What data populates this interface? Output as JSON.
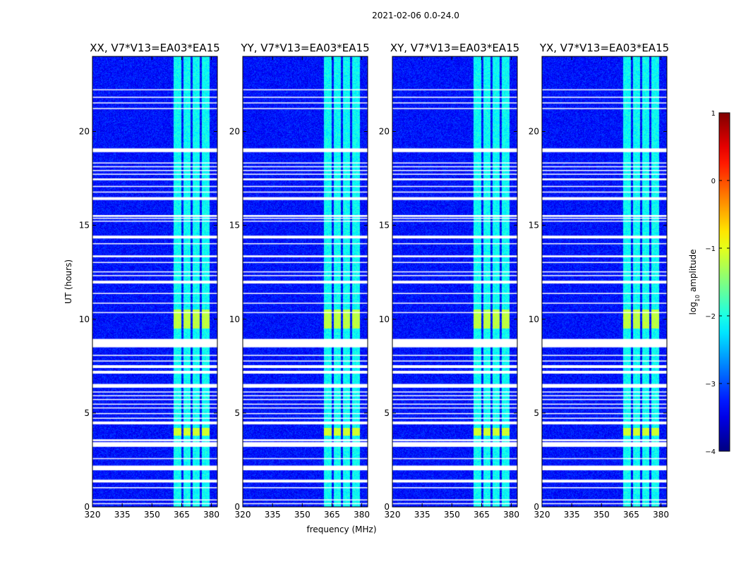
{
  "chart_data": {
    "type": "heatmap",
    "suptitle": "2021-02-06 0.0-24.0",
    "xlabel": "frequency (MHz)",
    "ylabel": "UT (hours)",
    "xlim": [
      320,
      383
    ],
    "ylim": [
      0,
      24
    ],
    "xticks": [
      320,
      335,
      350,
      365,
      380
    ],
    "yticks": [
      0,
      5,
      10,
      15,
      20
    ],
    "colorscale": "jet",
    "colorbar": {
      "label": "log10 amplitude",
      "label_main": "log",
      "label_sub": "10",
      "label_rest": " amplitude",
      "range": [
        -4,
        1
      ],
      "ticks": [
        1,
        0,
        -1,
        -2,
        -3,
        -4
      ],
      "tick_labels": [
        "1",
        "0",
        "−1",
        "−2",
        "−3",
        "−4"
      ]
    },
    "background_level": -3.3,
    "band": {
      "range_mhz": [
        361,
        380
      ],
      "level": -2.1,
      "sub_channels_mhz": [
        [
          361,
          365
        ],
        [
          366,
          369.5
        ],
        [
          370.5,
          374
        ],
        [
          375,
          379
        ]
      ]
    },
    "bright_events": [
      {
        "ut": [
          9.5,
          10.5
        ],
        "freq_mhz": [
          361,
          380
        ],
        "level": -1.2
      },
      {
        "ut": [
          3.8,
          4.2
        ],
        "freq_mhz": [
          361,
          380
        ],
        "level": -1.1
      }
    ],
    "flagged_ut_hours": [
      [
        0.15,
        0.2
      ],
      [
        0.35,
        0.4
      ],
      [
        1.0,
        1.05
      ],
      [
        1.3,
        1.45
      ],
      [
        1.95,
        2.2
      ],
      [
        2.55,
        2.6
      ],
      [
        3.2,
        3.45
      ],
      [
        3.5,
        3.6
      ],
      [
        4.4,
        4.55
      ],
      [
        4.7,
        4.75
      ],
      [
        4.95,
        5.0
      ],
      [
        5.25,
        5.3
      ],
      [
        5.45,
        5.5
      ],
      [
        5.7,
        5.75
      ],
      [
        5.9,
        5.95
      ],
      [
        6.1,
        6.15
      ],
      [
        6.35,
        6.55
      ],
      [
        7.1,
        7.25
      ],
      [
        7.4,
        7.55
      ],
      [
        7.75,
        7.8
      ],
      [
        8.05,
        8.1
      ],
      [
        8.5,
        8.95
      ],
      [
        10.35,
        10.38
      ],
      [
        10.85,
        10.88
      ],
      [
        11.35,
        11.4
      ],
      [
        11.9,
        12.05
      ],
      [
        12.3,
        12.35
      ],
      [
        12.5,
        12.55
      ],
      [
        13.0,
        13.05
      ],
      [
        13.3,
        13.4
      ],
      [
        14.0,
        14.05
      ],
      [
        14.3,
        14.45
      ],
      [
        15.2,
        15.25
      ],
      [
        15.35,
        15.4
      ],
      [
        15.45,
        15.55
      ],
      [
        16.35,
        16.5
      ],
      [
        16.75,
        16.8
      ],
      [
        17.05,
        17.1
      ],
      [
        17.4,
        17.5
      ],
      [
        17.7,
        17.75
      ],
      [
        17.9,
        17.95
      ],
      [
        18.1,
        18.15
      ],
      [
        18.3,
        18.35
      ],
      [
        18.9,
        19.1
      ],
      [
        21.2,
        21.25
      ],
      [
        21.5,
        21.55
      ],
      [
        21.8,
        21.85
      ],
      [
        22.2,
        22.25
      ]
    ],
    "panels": [
      {
        "title": "XX, V7*V13=EA03*EA15",
        "show_ylabel": true,
        "show_xlabel": false,
        "seed": 11
      },
      {
        "title": "YY, V7*V13=EA03*EA15",
        "show_ylabel": false,
        "show_xlabel": true,
        "seed": 23
      },
      {
        "title": "XY, V7*V13=EA03*EA15",
        "show_ylabel": false,
        "show_xlabel": false,
        "seed": 37
      },
      {
        "title": "YX, V7*V13=EA03*EA15",
        "show_ylabel": false,
        "show_xlabel": false,
        "seed": 53
      }
    ]
  }
}
